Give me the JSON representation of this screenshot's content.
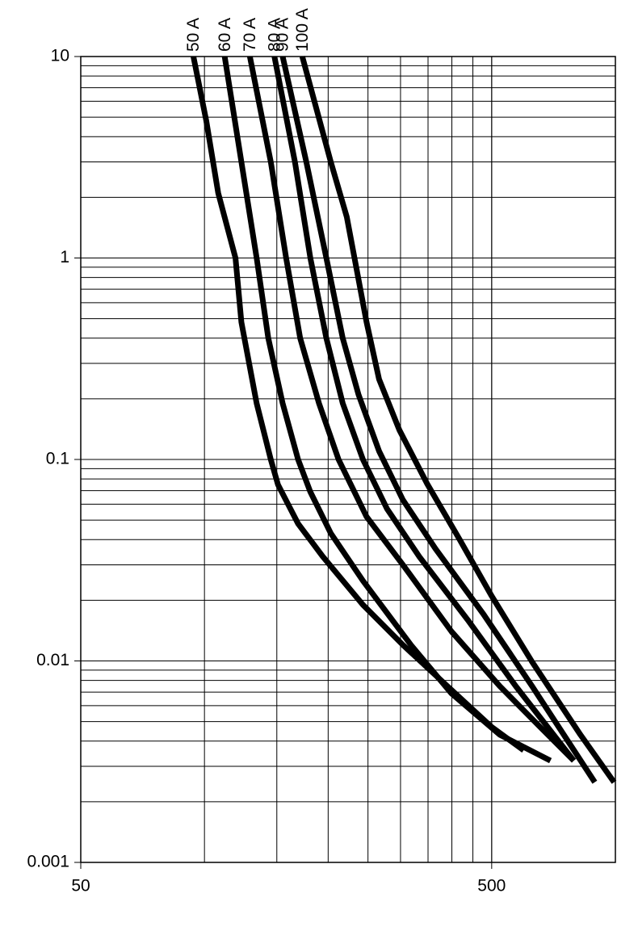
{
  "chart_data": {
    "type": "line",
    "log_x": true,
    "log_y": true,
    "xlim": [
      50,
      1000
    ],
    "ylim": [
      0.001,
      10
    ],
    "xticks": [
      50,
      500
    ],
    "yticks": [
      0.001,
      0.01,
      0.1,
      1,
      10
    ],
    "xgrid": [
      100,
      150,
      200,
      250,
      300,
      350,
      400,
      450,
      500
    ],
    "ygrid": [
      0.002,
      0.003,
      0.004,
      0.005,
      0.006,
      0.007,
      0.008,
      0.009,
      0.02,
      0.03,
      0.04,
      0.05,
      0.06,
      0.07,
      0.08,
      0.09,
      0.2,
      0.3,
      0.4,
      0.5,
      0.6,
      0.7,
      0.8,
      0.9,
      2,
      3,
      4,
      5,
      6,
      7,
      8,
      9
    ],
    "series": [
      {
        "name": "50 A",
        "color": "#000000",
        "x": [
          94,
          101,
          108,
          119,
          123,
          134,
          145,
          151,
          169,
          194,
          243,
          304,
          390,
          500,
          598
        ],
        "values": [
          10,
          4.8,
          2.1,
          1,
          0.48,
          0.19,
          0.1,
          0.075,
          0.048,
          0.033,
          0.019,
          0.012,
          0.0075,
          0.0047,
          0.0036
        ]
      },
      {
        "name": "60 A",
        "color": "#000000",
        "x": [
          112,
          123,
          134,
          143,
          155,
          169,
          181,
          203,
          243,
          318,
          399,
          523,
          695
        ],
        "values": [
          10,
          3,
          1,
          0.4,
          0.19,
          0.1,
          0.069,
          0.043,
          0.025,
          0.012,
          0.0069,
          0.0043,
          0.0032
        ]
      },
      {
        "name": "70 A",
        "color": "#000000",
        "x": [
          129,
          145,
          158,
          171,
          190,
          212,
          248,
          304,
          399,
          523,
          656,
          792
        ],
        "values": [
          10,
          3,
          1,
          0.4,
          0.19,
          0.1,
          0.052,
          0.03,
          0.014,
          0.0075,
          0.0047,
          0.0032
        ]
      },
      {
        "name": "80 A",
        "color": "#000000",
        "x": [
          148,
          166,
          181,
          198,
          217,
          243,
          278,
          333,
          437,
          572,
          792
        ],
        "values": [
          10,
          3,
          1,
          0.4,
          0.19,
          0.1,
          0.057,
          0.033,
          0.016,
          0.0075,
          0.0032
        ]
      },
      {
        "name": "90 A",
        "color": "#000000",
        "x": [
          155,
          177,
          198,
          217,
          237,
          266,
          304,
          365,
          478,
          627,
          891
        ],
        "values": [
          10,
          3,
          1,
          0.4,
          0.21,
          0.11,
          0.063,
          0.036,
          0.017,
          0.0075,
          0.0025
        ]
      },
      {
        "name": "100 A",
        "color": "#000000",
        "x": [
          173,
          203,
          222,
          248,
          266,
          298,
          348,
          418,
          500,
          627,
          822,
          993
        ],
        "values": [
          10,
          3,
          1.6,
          0.48,
          0.25,
          0.14,
          0.076,
          0.04,
          0.021,
          0.0099,
          0.0043,
          0.0025
        ]
      }
    ]
  }
}
